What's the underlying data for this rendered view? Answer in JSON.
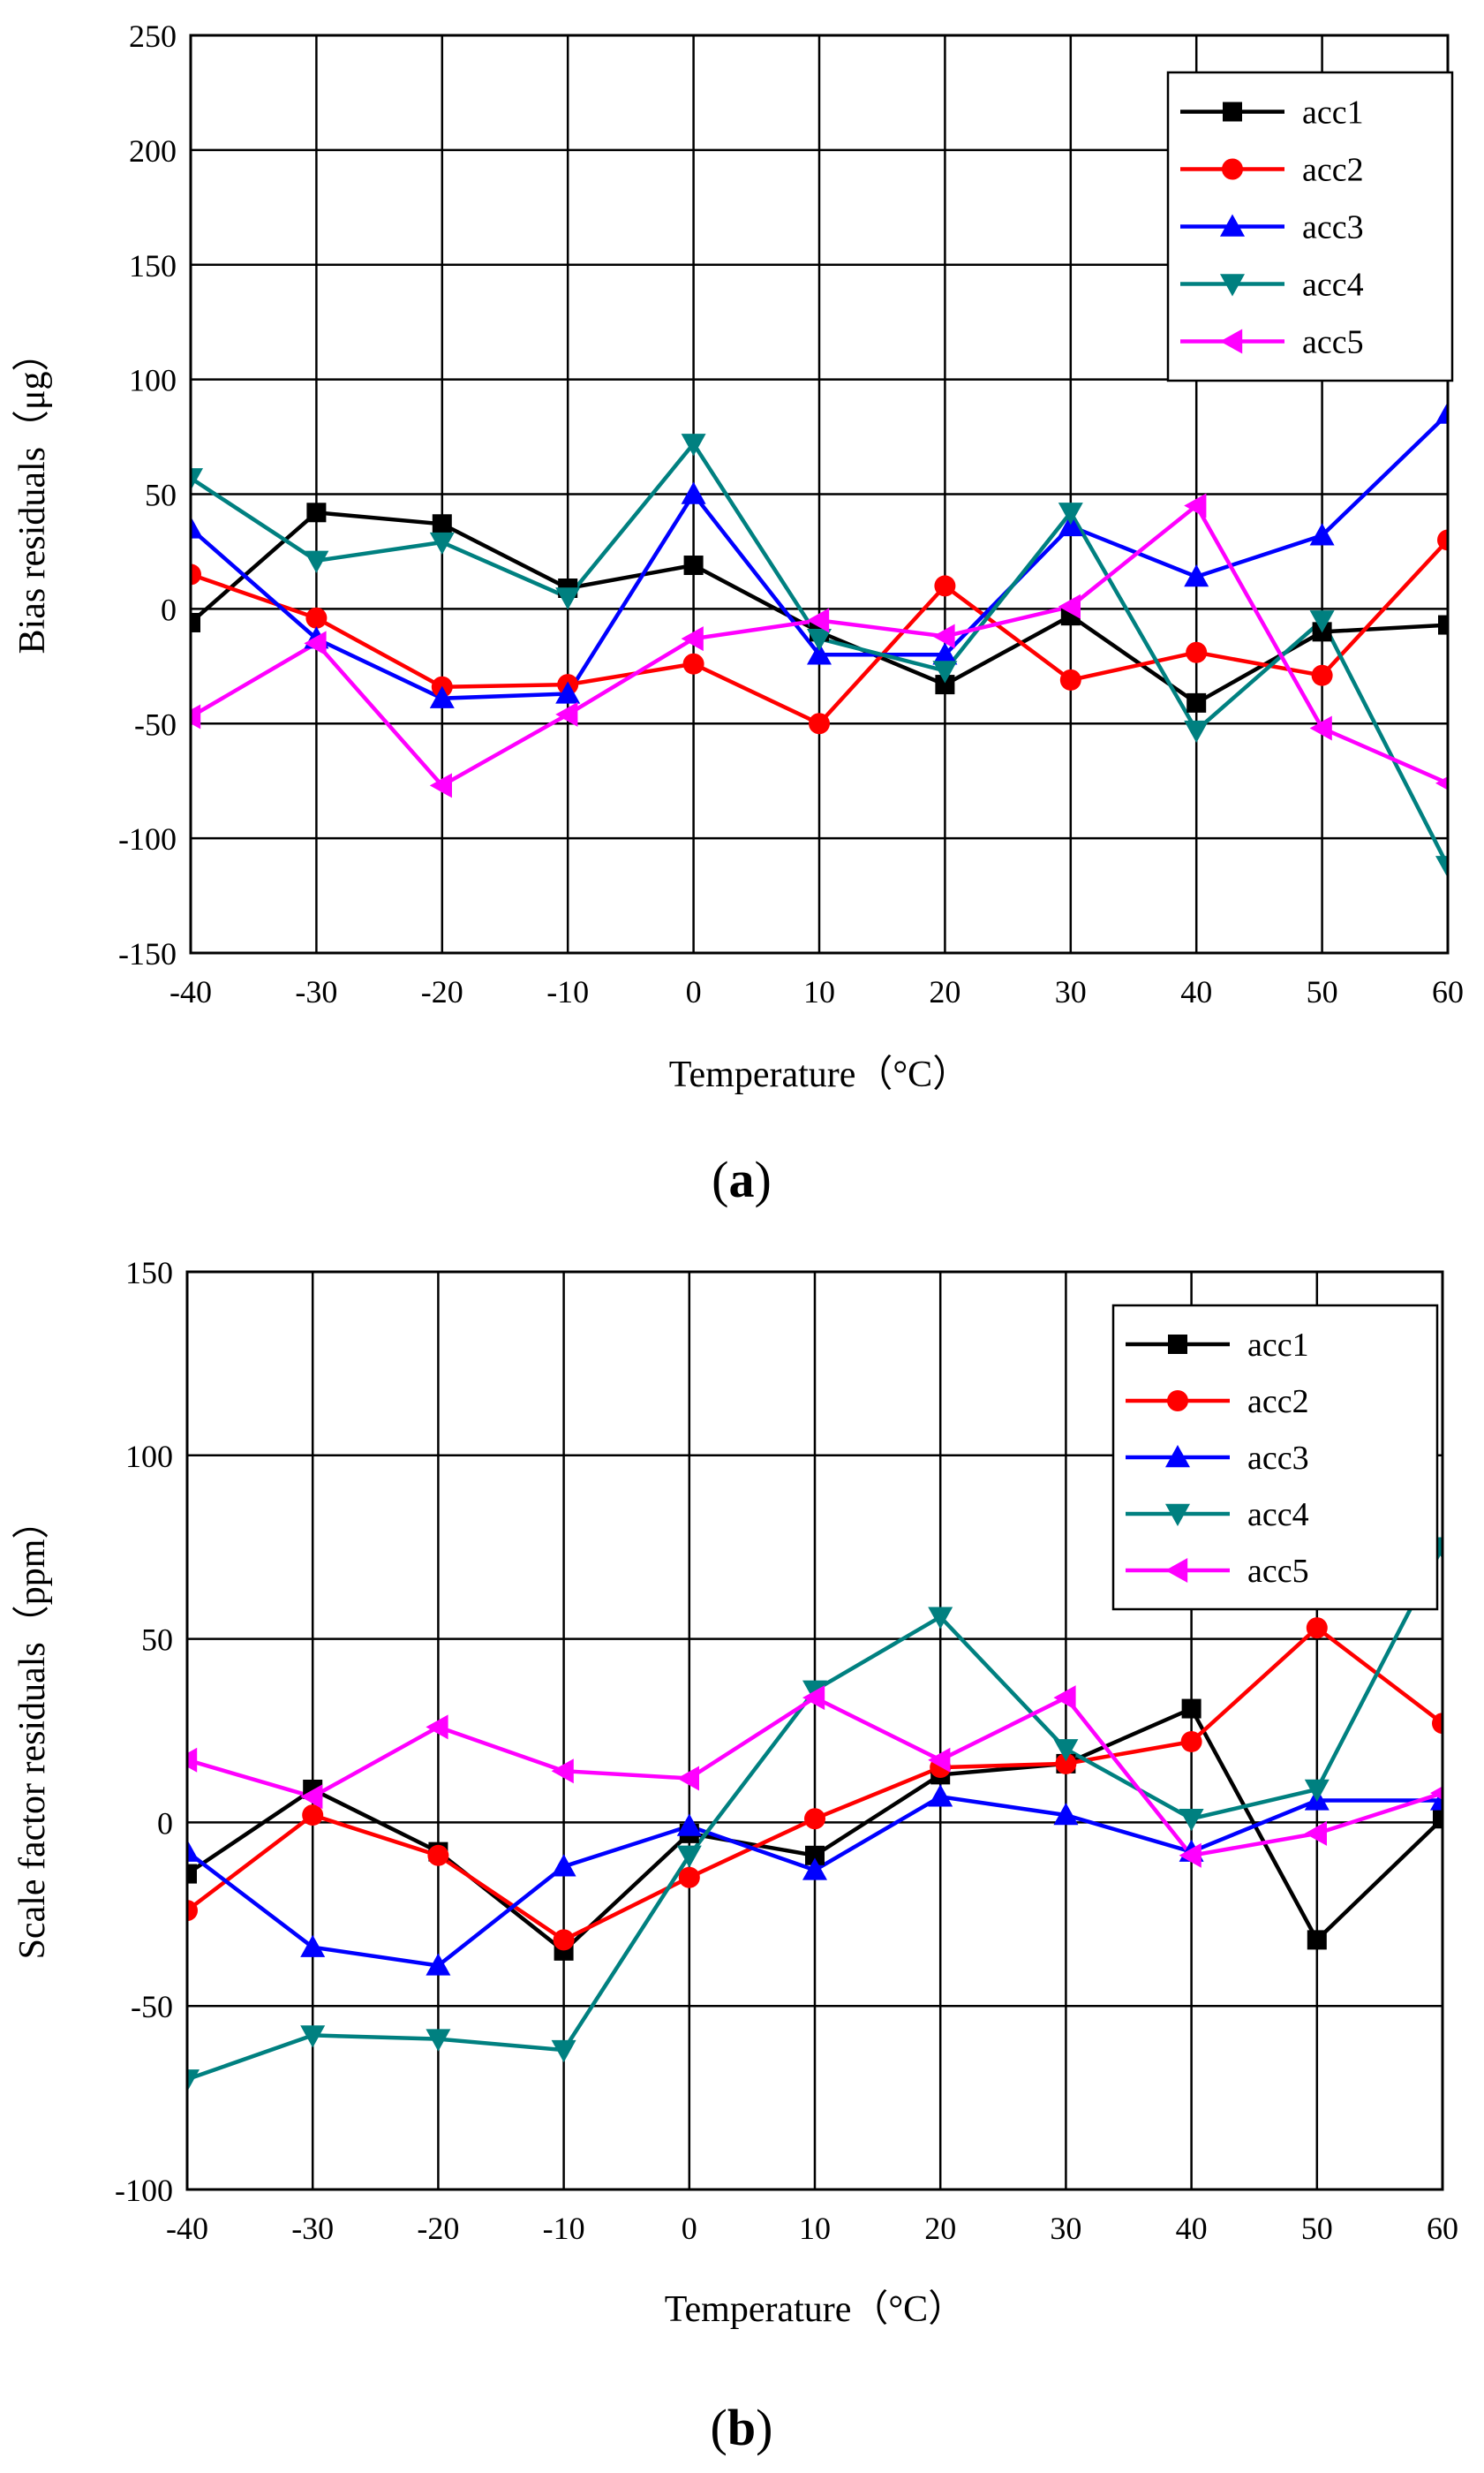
{
  "chart_data": [
    {
      "type": "line",
      "panel_label": "(a)",
      "panel_letter": "a",
      "xlabel": "Temperature（°C）",
      "ylabel": "Bias residuals（μg）",
      "x": [
        -40,
        -30,
        -20,
        -10,
        0,
        10,
        20,
        30,
        40,
        50,
        60
      ],
      "xlim": [
        -40,
        60
      ],
      "ylim": [
        -150,
        250
      ],
      "xticks": [
        -40,
        -30,
        -20,
        -10,
        0,
        10,
        20,
        30,
        40,
        50,
        60
      ],
      "yticks": [
        -150,
        -100,
        -50,
        0,
        50,
        100,
        150,
        200,
        250
      ],
      "grid": true,
      "legend_position": "top-right",
      "series": [
        {
          "name": "acc1",
          "color": "#000000",
          "marker": "square",
          "values": [
            -6,
            42,
            37,
            9,
            19,
            -10,
            -33,
            -3,
            -41,
            -10,
            -7
          ]
        },
        {
          "name": "acc2",
          "color": "#ff0000",
          "marker": "circle",
          "values": [
            15,
            -4,
            -34,
            -33,
            -24,
            -50,
            10,
            -31,
            -19,
            -29,
            30
          ]
        },
        {
          "name": "acc3",
          "color": "#0000ff",
          "marker": "triangle-up",
          "values": [
            35,
            -13,
            -39,
            -37,
            50,
            -20,
            -20,
            36,
            14,
            32,
            85
          ]
        },
        {
          "name": "acc4",
          "color": "#008080",
          "marker": "triangle-down",
          "values": [
            57,
            21,
            29,
            5,
            72,
            -13,
            -27,
            42,
            -53,
            -5,
            -112
          ]
        },
        {
          "name": "acc5",
          "color": "#ff00ff",
          "marker": "triangle-left",
          "values": [
            -47,
            -15,
            -77,
            -46,
            -13,
            -5,
            -12,
            1,
            45,
            -52,
            -76
          ]
        }
      ]
    },
    {
      "type": "line",
      "panel_label": "(b)",
      "panel_letter": "b",
      "xlabel": "Temperature（°C）",
      "ylabel": "Scale factor residuals（ppm）",
      "x": [
        -40,
        -30,
        -20,
        -10,
        0,
        10,
        20,
        30,
        40,
        50,
        60
      ],
      "xlim": [
        -40,
        60
      ],
      "ylim": [
        -100,
        150
      ],
      "xticks": [
        -40,
        -30,
        -20,
        -10,
        0,
        10,
        20,
        30,
        40,
        50,
        60
      ],
      "yticks": [
        -100,
        -50,
        0,
        50,
        100,
        150
      ],
      "grid": true,
      "legend_position": "top-right",
      "series": [
        {
          "name": "acc1",
          "color": "#000000",
          "marker": "square",
          "values": [
            -14,
            9,
            -8,
            -35,
            -3,
            -9,
            13,
            16,
            31,
            -32,
            1
          ]
        },
        {
          "name": "acc2",
          "color": "#ff0000",
          "marker": "circle",
          "values": [
            -24,
            2,
            -9,
            -32,
            -15,
            1,
            15,
            16,
            22,
            53,
            27
          ]
        },
        {
          "name": "acc3",
          "color": "#0000ff",
          "marker": "triangle-up",
          "values": [
            -8,
            -34,
            -39,
            -12,
            -1,
            -13,
            7,
            2,
            -8,
            6,
            6
          ]
        },
        {
          "name": "acc4",
          "color": "#008080",
          "marker": "triangle-down",
          "values": [
            -70,
            -58,
            -59,
            -62,
            -9,
            36,
            56,
            20,
            1,
            9,
            75
          ]
        },
        {
          "name": "acc5",
          "color": "#ff00ff",
          "marker": "triangle-left",
          "values": [
            17,
            7,
            26,
            14,
            12,
            34,
            17,
            34,
            -9,
            -3,
            8
          ]
        }
      ]
    }
  ]
}
